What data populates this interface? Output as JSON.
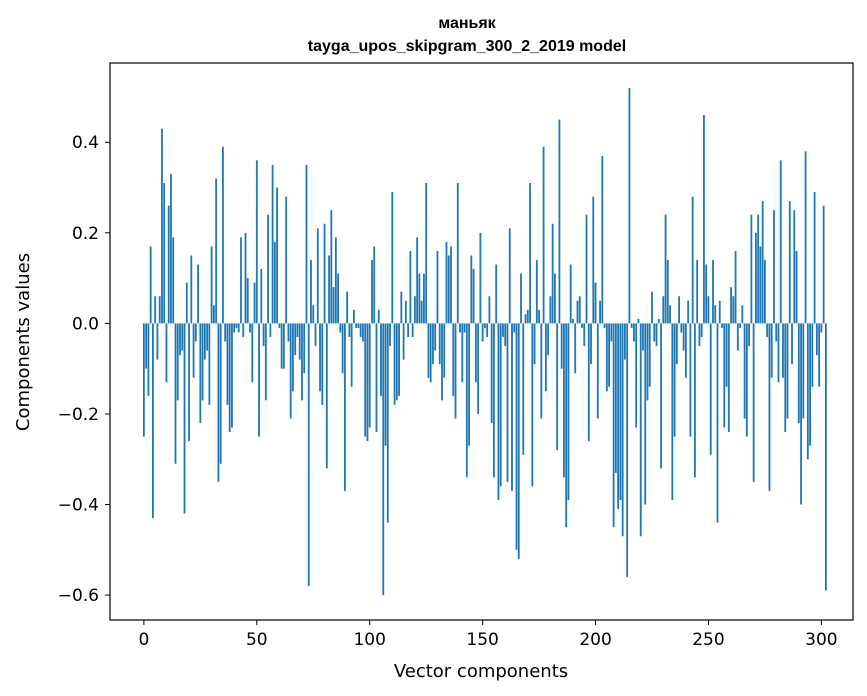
{
  "chart_data": {
    "type": "bar",
    "title": "маньяк",
    "subtitle": "tayga_upos_skipgram_300_2_2019 model",
    "xlabel": "Vector components",
    "ylabel": "Components values",
    "xlim": [
      -15,
      314
    ],
    "ylim": [
      -0.655,
      0.575
    ],
    "xticks": [
      0,
      50,
      100,
      150,
      200,
      250,
      300
    ],
    "yticks": [
      -0.6,
      -0.4,
      -0.2,
      0.0,
      0.2,
      0.4
    ],
    "xtick_labels": [
      "0",
      "50",
      "100",
      "150",
      "200",
      "250",
      "300"
    ],
    "ytick_labels": [
      "−0.6",
      "−0.4",
      "−0.2",
      "0.0",
      "0.2",
      "0.4"
    ],
    "bar_color": "#1f77b4",
    "values": [
      -0.25,
      -0.1,
      -0.16,
      0.17,
      -0.43,
      0.06,
      -0.08,
      0.06,
      0.43,
      0.31,
      -0.13,
      0.26,
      0.33,
      0.19,
      -0.31,
      -0.17,
      -0.07,
      -0.06,
      -0.42,
      0.09,
      -0.26,
      0.15,
      -0.12,
      -0.04,
      0.13,
      -0.22,
      -0.17,
      -0.08,
      -0.06,
      -0.18,
      0.17,
      0.04,
      0.32,
      -0.35,
      -0.31,
      0.39,
      -0.04,
      -0.18,
      -0.24,
      -0.23,
      -0.02,
      -0.01,
      -0.02,
      0.19,
      -0.03,
      0.2,
      0.1,
      -0.02,
      -0.13,
      0.09,
      0.36,
      -0.25,
      0.12,
      -0.05,
      -0.17,
      0.24,
      -0.03,
      0.35,
      0.18,
      0.3,
      -0.01,
      -0.1,
      -0.1,
      0.28,
      -0.04,
      -0.21,
      -0.15,
      -0.07,
      -0.03,
      -0.08,
      -0.17,
      -0.11,
      0.35,
      -0.58,
      0.14,
      0.04,
      -0.05,
      0.21,
      -0.15,
      -0.18,
      0.22,
      -0.32,
      0.15,
      0.25,
      0.08,
      0.19,
      0.11,
      -0.02,
      -0.11,
      -0.37,
      0.07,
      -0.03,
      -0.14,
      0.03,
      -0.01,
      -0.01,
      -0.03,
      -0.04,
      -0.25,
      -0.26,
      -0.23,
      0.14,
      0.17,
      -0.24,
      0.03,
      -0.16,
      -0.6,
      -0.27,
      -0.44,
      -0.05,
      0.29,
      -0.18,
      -0.17,
      -0.16,
      0.07,
      -0.08,
      0.05,
      -0.03,
      0.16,
      -0.03,
      0.06,
      0.19,
      0.11,
      0.05,
      0.11,
      0.31,
      -0.12,
      -0.13,
      -0.09,
      -0.06,
      0.16,
      -0.09,
      -0.17,
      -0.12,
      0.18,
      0.15,
      0.17,
      -0.16,
      -0.21,
      0.31,
      -0.02,
      -0.13,
      -0.02,
      -0.34,
      -0.27,
      0.15,
      0.12,
      -0.13,
      -0.2,
      0.2,
      -0.04,
      -0.01,
      -0.03,
      0.06,
      -0.22,
      -0.34,
      0.13,
      -0.39,
      -0.36,
      -0.03,
      -0.05,
      -0.35,
      0.21,
      -0.37,
      -0.02,
      -0.5,
      -0.52,
      0.11,
      -0.29,
      0.02,
      0.03,
      0.31,
      -0.36,
      -0.09,
      0.14,
      0.03,
      -0.21,
      0.39,
      -0.15,
      -0.07,
      0.06,
      0.22,
      0.11,
      -0.28,
      0.45,
      -0.1,
      -0.34,
      -0.45,
      -0.39,
      0.13,
      0.01,
      -0.11,
      0.05,
      0.06,
      -0.01,
      -0.05,
      0.24,
      -0.26,
      -0.09,
      0.28,
      0.09,
      -0.21,
      0.05,
      0.37,
      -0.01,
      -0.15,
      -0.14,
      -0.04,
      -0.45,
      -0.33,
      -0.41,
      -0.39,
      -0.47,
      -0.08,
      -0.56,
      0.52,
      -0.01,
      -0.04,
      -0.23,
      0.01,
      -0.47,
      -0.06,
      -0.4,
      -0.17,
      -0.14,
      0.07,
      -0.04,
      -0.05,
      0.01,
      -0.32,
      0.06,
      0.24,
      0.14,
      0.04,
      -0.39,
      -0.25,
      -0.09,
      0.06,
      -0.02,
      -0.06,
      -0.12,
      0.05,
      -0.25,
      0.28,
      -0.34,
      0.14,
      -0.05,
      -0.03,
      0.46,
      0.13,
      0.06,
      -0.29,
      0.14,
      0.04,
      -0.44,
      0.05,
      -0.01,
      -0.23,
      -0.14,
      -0.24,
      0.08,
      0.06,
      0.16,
      -0.06,
      -0.01,
      0.04,
      -0.21,
      -0.25,
      -0.05,
      0.24,
      -0.35,
      0.2,
      0.24,
      0.17,
      0.27,
      0.14,
      -0.03,
      -0.37,
      -0.12,
      0.25,
      -0.04,
      -0.13,
      0.36,
      -0.12,
      -0.24,
      -0.21,
      0.27,
      -0.09,
      0.25,
      0.16,
      -0.22,
      -0.4,
      -0.21,
      0.38,
      -0.3,
      -0.27,
      -0.14,
      0.29,
      -0.07,
      -0.14,
      -0.02,
      0.26,
      -0.59
    ]
  }
}
